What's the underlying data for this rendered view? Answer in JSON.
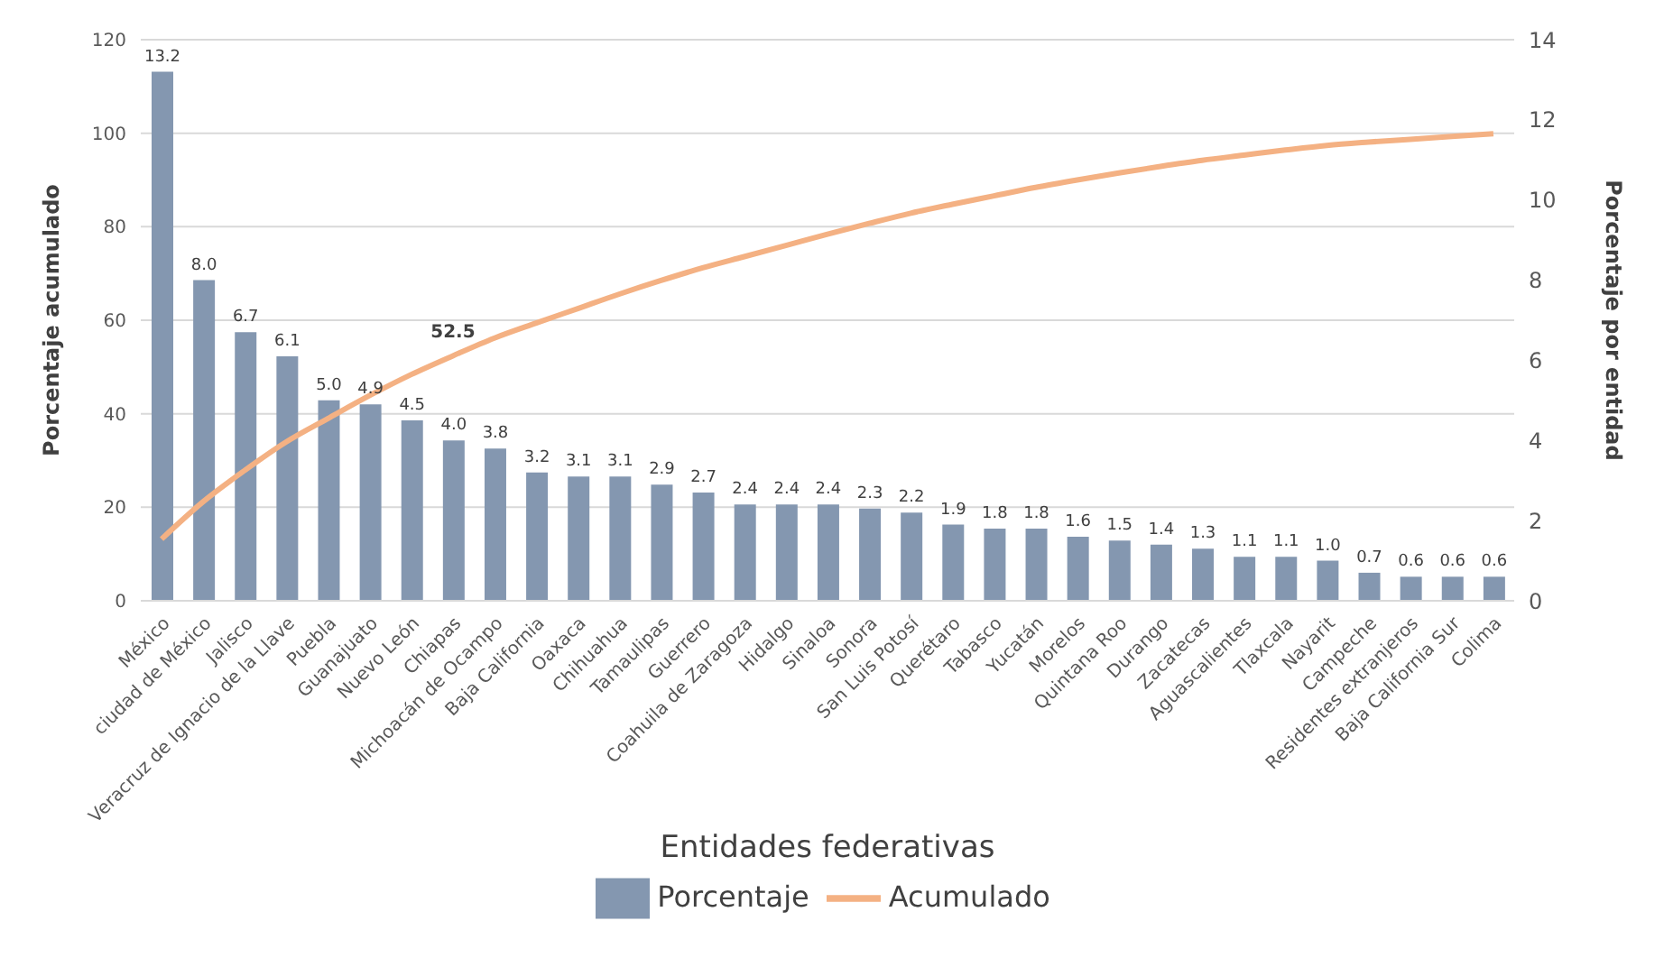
{
  "chart_data": {
    "type": "bar",
    "xlabel": "Entidades federativas",
    "ylabel": "Porcentaje acumulado",
    "y2label": "Porcentaje por entidad",
    "categories": [
      "México",
      "ciudad de México",
      "Jalisco",
      "Veracruz de Ignacio de la Llave",
      "Puebla",
      "Guanajuato",
      "Nuevo León",
      "Chiapas",
      "Michoacán  de Ocampo",
      "Baja California",
      "Oaxaca",
      "Chihuahua",
      "Tamaulipas",
      "Guerrero",
      "Coahuila de Zaragoza",
      "Hidalgo",
      "Sinaloa",
      "Sonora",
      "San Luis Potosí",
      "Querétaro",
      "Tabasco",
      "Yucatán",
      "Morelos",
      "Quintana Roo",
      "Durango",
      "Zacatecas",
      "Aguascalientes",
      "Tlaxcala",
      "Nayarit",
      "Campeche",
      "Residentes extranjeros",
      "Baja California Sur",
      "Colima"
    ],
    "series": [
      {
        "name": "Porcentaje",
        "axis": "y2",
        "color": "#8497b0",
        "values": [
          13.2,
          8.0,
          6.7,
          6.1,
          5.0,
          4.9,
          4.5,
          4.0,
          3.8,
          3.2,
          3.1,
          3.1,
          2.9,
          2.7,
          2.4,
          2.4,
          2.4,
          2.3,
          2.2,
          1.9,
          1.8,
          1.8,
          1.6,
          1.5,
          1.4,
          1.3,
          1.1,
          1.1,
          1.0,
          0.7,
          0.6,
          0.6,
          0.6
        ],
        "value_labels": [
          "13.2",
          "8.0",
          "6.7",
          "6.1",
          "5.0",
          "4.9",
          "4.5",
          "4.0",
          "3.8",
          "3.2",
          "3.1",
          "3.1",
          "2.9",
          "2.7",
          "2.4",
          "2.4",
          "2.4",
          "2.3",
          "2.2",
          "1.9",
          "1.8",
          "1.8",
          "1.6",
          "1.5",
          "1.4",
          "1.3",
          "1.1",
          "1.1",
          "1.0",
          "0.7",
          "0.6",
          "0.6",
          "0.6"
        ]
      },
      {
        "name": "Acumulado",
        "type": "line",
        "axis": "y",
        "color": "#f4b183",
        "values": [
          13.2,
          21.2,
          27.9,
          34.0,
          39.0,
          43.9,
          48.4,
          52.4,
          56.2,
          59.4,
          62.5,
          65.6,
          68.5,
          71.2,
          73.6,
          76.0,
          78.4,
          80.7,
          82.9,
          84.8,
          86.6,
          88.4,
          90.0,
          91.5,
          92.9,
          94.2,
          95.3,
          96.4,
          97.4,
          98.1,
          98.7,
          99.3,
          99.9
        ]
      }
    ],
    "annotations": [
      {
        "text": "52.5",
        "x": "Chiapas",
        "y": 52.5
      }
    ],
    "ylim": [
      0,
      120
    ],
    "yticks": [
      0,
      20,
      40,
      60,
      80,
      100,
      120
    ],
    "y2lim": [
      0,
      14
    ],
    "y2ticks": [
      0,
      2,
      4,
      6,
      8,
      10,
      12,
      14
    ],
    "grid": "y",
    "legend": "bottom",
    "marker": "none",
    "line_style": "solid"
  }
}
